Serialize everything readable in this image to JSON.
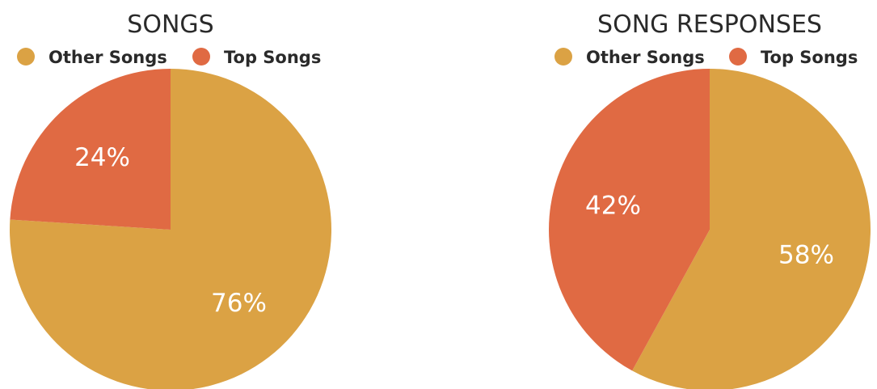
{
  "chart_data": [
    {
      "type": "pie",
      "title": "SONGS",
      "legend_position": "top",
      "slices": [
        {
          "label": "Other Songs",
          "value": 76,
          "value_label": "76%",
          "color": "#DBA244"
        },
        {
          "label": "Top Songs",
          "value": 24,
          "value_label": "24%",
          "color": "#E06A43"
        }
      ]
    },
    {
      "type": "pie",
      "title": "SONG RESPONSES",
      "legend_position": "top",
      "slices": [
        {
          "label": "Other Songs",
          "value": 58,
          "value_label": "58%",
          "color": "#DBA244"
        },
        {
          "label": "Top Songs",
          "value": 42,
          "value_label": "42%",
          "color": "#E06A43"
        }
      ]
    }
  ]
}
